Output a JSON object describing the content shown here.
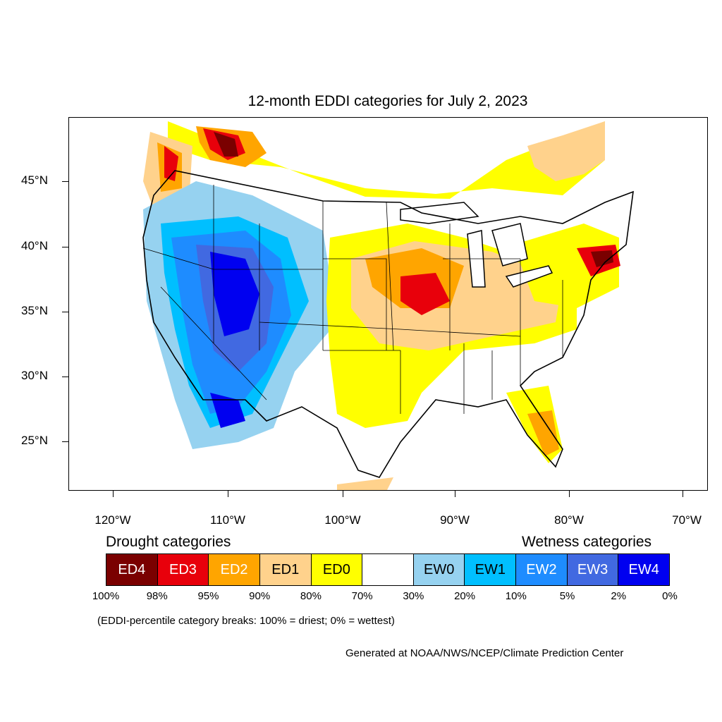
{
  "title": "12-month EDDI categories for July 2, 2023",
  "latitude_labels": [
    "45°N",
    "40°N",
    "35°N",
    "30°N",
    "25°N"
  ],
  "longitude_labels": [
    "120°W",
    "110°W",
    "100°W",
    "90°W",
    "80°W",
    "70°W"
  ],
  "legend": {
    "drought_heading": "Drought categories",
    "wetness_heading": "Wetness categories",
    "categories": [
      {
        "label": "ED4",
        "color": "#7a0000",
        "text_color": "#ffffff"
      },
      {
        "label": "ED3",
        "color": "#e8000b",
        "text_color": "#ffffff"
      },
      {
        "label": "ED2",
        "color": "#ffa500",
        "text_color": "#ffffff"
      },
      {
        "label": "ED1",
        "color": "#ffd28c",
        "text_color": "#000000"
      },
      {
        "label": "ED0",
        "color": "#ffff00",
        "text_color": "#000000"
      },
      {
        "label": "",
        "color": "#ffffff",
        "text_color": "#000000"
      },
      {
        "label": "EW0",
        "color": "#96d2f0",
        "text_color": "#000000"
      },
      {
        "label": "EW1",
        "color": "#00bfff",
        "text_color": "#000000"
      },
      {
        "label": "EW2",
        "color": "#1e8cff",
        "text_color": "#ffffff"
      },
      {
        "label": "EW3",
        "color": "#4169e1",
        "text_color": "#ffffff"
      },
      {
        "label": "EW4",
        "color": "#0000f0",
        "text_color": "#ffffff"
      }
    ],
    "breaks": [
      "100%",
      "98%",
      "95%",
      "90%",
      "80%",
      "70%",
      "30%",
      "20%",
      "10%",
      "5%",
      "2%",
      "0%"
    ]
  },
  "note": "(EDDI-percentile category breaks: 100% = driest; 0% = wettest)",
  "credit": "Generated at NOAA/NWS/NCEP/Climate Prediction Center"
}
